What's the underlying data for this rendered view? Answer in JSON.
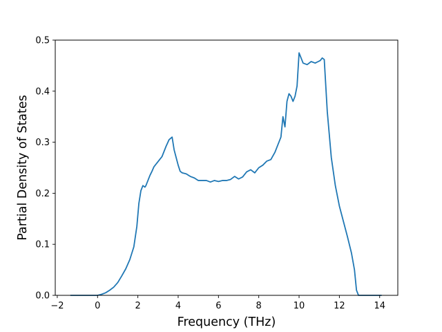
{
  "chart_data": {
    "type": "line",
    "title": "",
    "xlabel": "Frequency (THz)",
    "ylabel": "Partial Density of States",
    "xlim": [
      -2.1,
      14.9
    ],
    "ylim": [
      0.0,
      0.5
    ],
    "xticks": [
      -2,
      0,
      2,
      4,
      6,
      8,
      10,
      12,
      14
    ],
    "xtick_labels": [
      "−2",
      "0",
      "2",
      "4",
      "6",
      "8",
      "10",
      "12",
      "14"
    ],
    "yticks": [
      0.0,
      0.1,
      0.2,
      0.3,
      0.4,
      0.5
    ],
    "ytick_labels": [
      "0.0",
      "0.1",
      "0.2",
      "0.3",
      "0.4",
      "0.5"
    ],
    "grid": false,
    "line_color": "#1f77b4",
    "series": [
      {
        "x": [
          -1.35,
          -1.0,
          -0.5,
          0.0,
          0.2,
          0.4,
          0.6,
          0.8,
          1.0,
          1.2,
          1.4,
          1.6,
          1.8,
          1.95,
          2.05,
          2.15,
          2.25,
          2.35,
          2.4,
          2.5,
          2.6,
          2.7,
          2.8,
          3.0,
          3.2,
          3.4,
          3.55,
          3.7,
          3.8,
          3.9,
          4.0,
          4.1,
          4.2,
          4.4,
          4.6,
          4.8,
          5.0,
          5.2,
          5.4,
          5.6,
          5.8,
          6.0,
          6.2,
          6.4,
          6.6,
          6.8,
          7.0,
          7.2,
          7.4,
          7.6,
          7.8,
          8.0,
          8.2,
          8.4,
          8.6,
          8.8,
          8.9,
          9.0,
          9.1,
          9.2,
          9.3,
          9.4,
          9.5,
          9.6,
          9.7,
          9.8,
          9.85,
          9.9,
          10.0,
          10.2,
          10.4,
          10.6,
          10.8,
          10.95,
          11.05,
          11.15,
          11.25,
          11.4,
          11.6,
          11.8,
          12.0,
          12.2,
          12.4,
          12.6,
          12.75,
          12.85,
          12.95,
          13.2,
          13.6,
          14.1
        ],
        "y": [
          0.0,
          0.0,
          0.0,
          0.0,
          0.002,
          0.005,
          0.01,
          0.016,
          0.025,
          0.038,
          0.052,
          0.07,
          0.095,
          0.135,
          0.18,
          0.205,
          0.215,
          0.212,
          0.215,
          0.225,
          0.235,
          0.243,
          0.252,
          0.262,
          0.272,
          0.292,
          0.305,
          0.31,
          0.285,
          0.27,
          0.255,
          0.243,
          0.24,
          0.238,
          0.233,
          0.23,
          0.225,
          0.225,
          0.225,
          0.222,
          0.225,
          0.223,
          0.225,
          0.225,
          0.227,
          0.233,
          0.228,
          0.232,
          0.242,
          0.246,
          0.24,
          0.25,
          0.255,
          0.263,
          0.266,
          0.28,
          0.29,
          0.3,
          0.31,
          0.35,
          0.33,
          0.38,
          0.395,
          0.39,
          0.38,
          0.39,
          0.4,
          0.41,
          0.475,
          0.455,
          0.452,
          0.458,
          0.455,
          0.458,
          0.46,
          0.465,
          0.462,
          0.36,
          0.27,
          0.215,
          0.175,
          0.145,
          0.115,
          0.083,
          0.05,
          0.01,
          0.0,
          0.0,
          0.0,
          0.0
        ]
      }
    ]
  }
}
